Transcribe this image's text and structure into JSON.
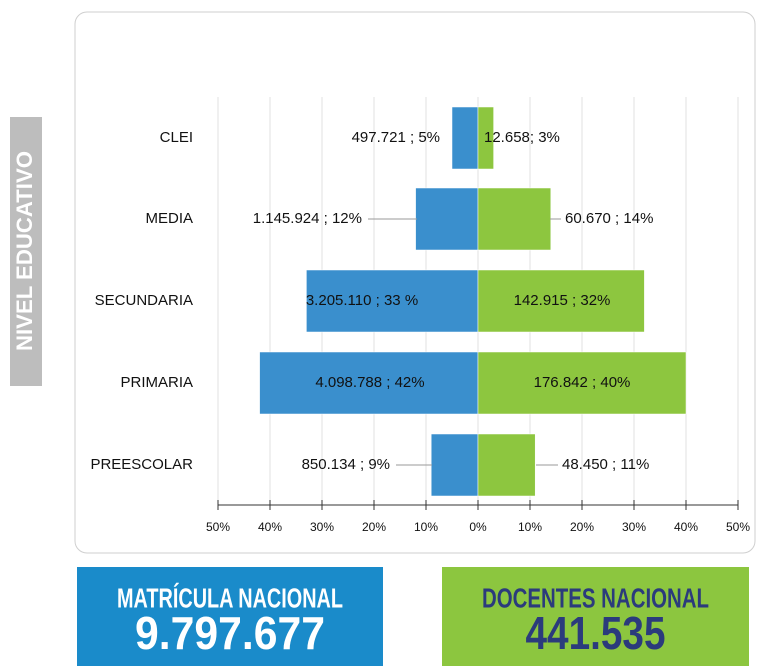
{
  "chart_data": {
    "type": "butterfly_bar",
    "y_label": "NIVEL EDUCATIVO",
    "categories": [
      "CLEI",
      "MEDIA",
      "SECUNDARIA",
      "PRIMARIA",
      "PREESCOLAR"
    ],
    "series": [
      {
        "color": "#3a8fcd",
        "values": [
          -5,
          -12,
          -33,
          -42,
          -9
        ],
        "value_labels": [
          "497.721 ; 5%",
          "1.145.924 ; 12%",
          "3.205.110 ; 33 %",
          "4.098.788 ; 42%",
          "850.134 ; 9%"
        ]
      },
      {
        "color": "#8dc63f",
        "values": [
          3,
          14,
          32,
          40,
          11
        ],
        "value_labels": [
          "12.658; 3%",
          "60.670 ; 14%",
          "142.915 ; 32%",
          "176.842 ; 40%",
          "48.450 ; 11%"
        ]
      }
    ],
    "xlim": [
      -50,
      50
    ],
    "xticks": [
      {
        "value": -50,
        "label": "50%"
      },
      {
        "value": -40,
        "label": "40%"
      },
      {
        "value": -30,
        "label": "30%"
      },
      {
        "value": -20,
        "label": "20%"
      },
      {
        "value": -10,
        "label": "10%"
      },
      {
        "value": 0,
        "label": "0%"
      },
      {
        "value": 10,
        "label": "10%"
      },
      {
        "value": 20,
        "label": "20%"
      },
      {
        "value": 30,
        "label": "30%"
      },
      {
        "value": 40,
        "label": "40%"
      },
      {
        "value": 50,
        "label": "50%"
      }
    ],
    "grid": true
  },
  "summary": [
    {
      "title": "MATRÍCULA NACIONAL",
      "value": "9.797.677",
      "color": "#1a8bca"
    },
    {
      "title": "DOCENTES NACIONAL",
      "value": "441.535",
      "color": "#8cc63f"
    }
  ]
}
